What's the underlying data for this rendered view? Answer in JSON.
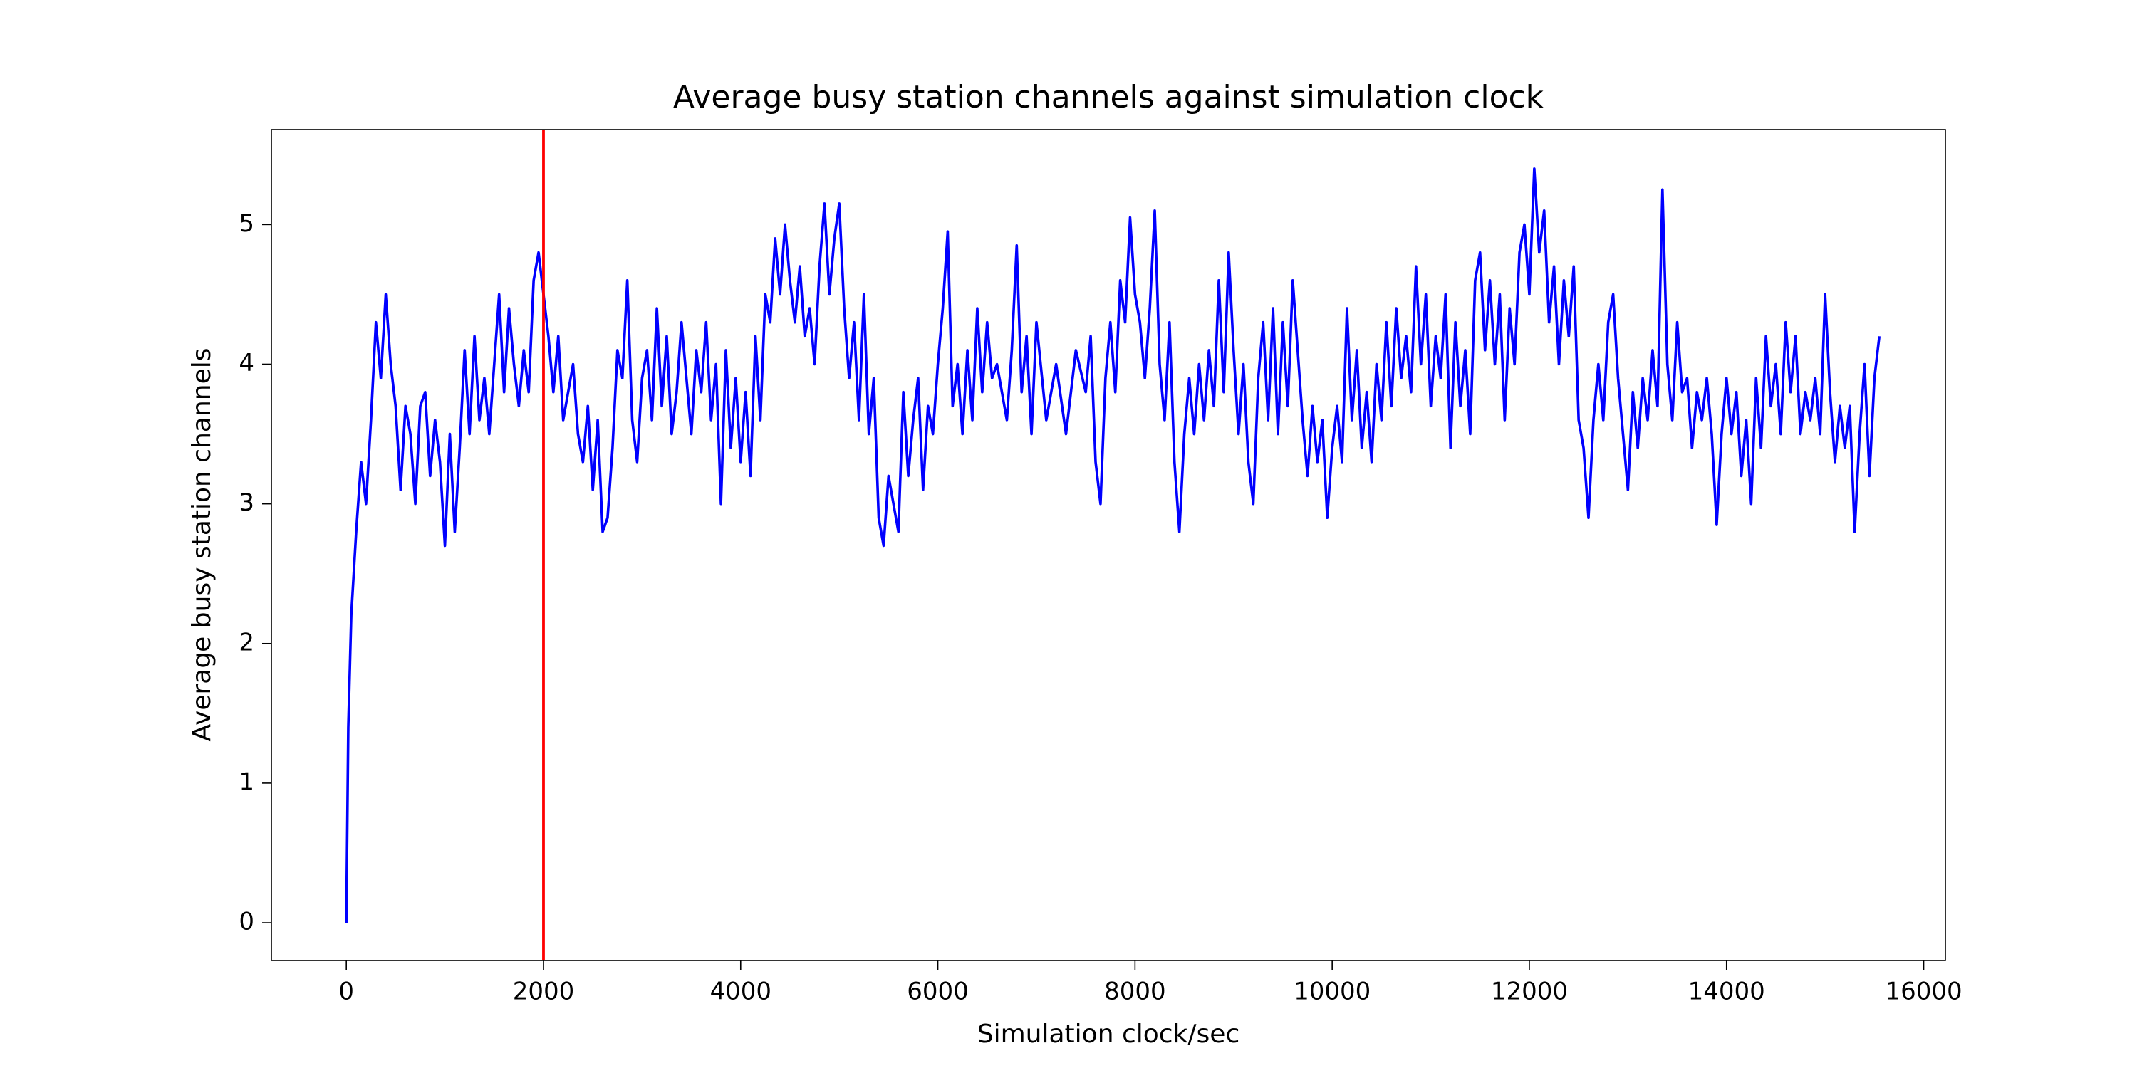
{
  "chart_data": {
    "type": "line",
    "title": "Average busy station channels against simulation clock",
    "x_label": "Simulation clock/sec",
    "y_label": "Average busy station channels",
    "xlim": [
      -760,
      16220
    ],
    "ylim": [
      -0.27,
      5.68
    ],
    "xticks": [
      0,
      2000,
      4000,
      6000,
      8000,
      10000,
      12000,
      14000,
      16000
    ],
    "yticks": [
      0,
      1,
      2,
      3,
      4,
      5
    ],
    "grid": false,
    "vline": {
      "x": 2000,
      "color": "#ff0000"
    },
    "x": [
      0,
      20,
      50,
      100,
      150,
      200,
      250,
      300,
      350,
      400,
      450,
      500,
      550,
      600,
      650,
      700,
      750,
      800,
      850,
      900,
      950,
      1000,
      1050,
      1100,
      1150,
      1200,
      1250,
      1300,
      1350,
      1400,
      1450,
      1500,
      1550,
      1600,
      1650,
      1700,
      1750,
      1800,
      1850,
      1900,
      1950,
      2000,
      2050,
      2100,
      2150,
      2200,
      2300,
      2350,
      2400,
      2450,
      2500,
      2550,
      2600,
      2650,
      2700,
      2750,
      2800,
      2850,
      2900,
      2950,
      3000,
      3050,
      3100,
      3150,
      3200,
      3250,
      3300,
      3350,
      3400,
      3500,
      3550,
      3600,
      3650,
      3700,
      3750,
      3800,
      3850,
      3900,
      3950,
      4000,
      4050,
      4100,
      4150,
      4200,
      4250,
      4300,
      4350,
      4400,
      4450,
      4500,
      4550,
      4600,
      4650,
      4700,
      4750,
      4800,
      4850,
      4900,
      4950,
      5000,
      5050,
      5100,
      5150,
      5200,
      5250,
      5300,
      5350,
      5400,
      5450,
      5500,
      5550,
      5600,
      5650,
      5700,
      5750,
      5800,
      5850,
      5900,
      5950,
      6000,
      6050,
      6100,
      6150,
      6200,
      6250,
      6300,
      6350,
      6400,
      6450,
      6500,
      6550,
      6600,
      6700,
      6750,
      6800,
      6850,
      6900,
      6950,
      7000,
      7100,
      7200,
      7300,
      7400,
      7500,
      7550,
      7600,
      7650,
      7700,
      7750,
      7800,
      7850,
      7900,
      7950,
      8000,
      8050,
      8100,
      8150,
      8200,
      8250,
      8300,
      8350,
      8400,
      8450,
      8500,
      8550,
      8600,
      8650,
      8700,
      8750,
      8800,
      8850,
      8900,
      8950,
      9000,
      9050,
      9100,
      9150,
      9200,
      9250,
      9300,
      9350,
      9400,
      9450,
      9500,
      9550,
      9600,
      9650,
      9700,
      9750,
      9800,
      9850,
      9900,
      9950,
      10000,
      10050,
      10100,
      10150,
      10200,
      10250,
      10300,
      10350,
      10400,
      10450,
      10500,
      10550,
      10600,
      10650,
      10700,
      10750,
      10800,
      10850,
      10900,
      10950,
      11000,
      11050,
      11100,
      11150,
      11200,
      11250,
      11300,
      11350,
      11400,
      11450,
      11500,
      11550,
      11600,
      11650,
      11700,
      11750,
      11800,
      11850,
      11900,
      11950,
      12000,
      12050,
      12100,
      12150,
      12200,
      12250,
      12300,
      12350,
      12400,
      12450,
      12500,
      12550,
      12600,
      12650,
      12700,
      12750,
      12800,
      12850,
      12900,
      12950,
      13000,
      13050,
      13100,
      13150,
      13200,
      13250,
      13300,
      13350,
      13400,
      13450,
      13500,
      13550,
      13600,
      13650,
      13700,
      13750,
      13800,
      13850,
      13900,
      13950,
      14000,
      14050,
      14100,
      14150,
      14200,
      14250,
      14300,
      14350,
      14400,
      14450,
      14500,
      14550,
      14600,
      14650,
      14700,
      14750,
      14800,
      14850,
      14900,
      14950,
      15000,
      15050,
      15100,
      15150,
      15200,
      15250,
      15300,
      15350,
      15400,
      15450,
      15500,
      15550
    ],
    "series": [
      {
        "color": "#0000ff",
        "values": [
          0,
          1.4,
          2.2,
          2.8,
          3.3,
          3.0,
          3.6,
          4.3,
          3.9,
          4.5,
          4.0,
          3.7,
          3.1,
          3.7,
          3.5,
          3.0,
          3.7,
          3.8,
          3.2,
          3.6,
          3.3,
          2.7,
          3.5,
          2.8,
          3.4,
          4.1,
          3.5,
          4.2,
          3.6,
          3.9,
          3.5,
          4.0,
          4.5,
          3.8,
          4.4,
          4.0,
          3.7,
          4.1,
          3.8,
          4.6,
          4.8,
          4.5,
          4.2,
          3.8,
          4.2,
          3.6,
          4.0,
          3.5,
          3.3,
          3.7,
          3.1,
          3.6,
          2.8,
          2.9,
          3.4,
          4.1,
          3.9,
          4.6,
          3.6,
          3.3,
          3.9,
          4.1,
          3.6,
          4.4,
          3.7,
          4.2,
          3.5,
          3.8,
          4.3,
          3.5,
          4.1,
          3.8,
          4.3,
          3.6,
          4.0,
          3.0,
          4.1,
          3.4,
          3.9,
          3.3,
          3.8,
          3.2,
          4.2,
          3.6,
          4.5,
          4.3,
          4.9,
          4.5,
          5.0,
          4.6,
          4.3,
          4.7,
          4.2,
          4.4,
          4.0,
          4.7,
          5.15,
          4.5,
          4.9,
          5.15,
          4.4,
          3.9,
          4.3,
          3.6,
          4.5,
          3.5,
          3.9,
          2.9,
          2.7,
          3.2,
          3.0,
          2.8,
          3.8,
          3.2,
          3.6,
          3.9,
          3.1,
          3.7,
          3.5,
          4.0,
          4.4,
          4.95,
          3.7,
          4.0,
          3.5,
          4.1,
          3.6,
          4.4,
          3.8,
          4.3,
          3.9,
          4.0,
          3.6,
          4.1,
          4.85,
          3.8,
          4.2,
          3.5,
          4.3,
          3.6,
          4.0,
          3.5,
          4.1,
          3.8,
          4.2,
          3.3,
          3.0,
          3.9,
          4.3,
          3.8,
          4.6,
          4.3,
          5.05,
          4.5,
          4.3,
          3.9,
          4.4,
          5.1,
          4.0,
          3.6,
          4.3,
          3.3,
          2.8,
          3.5,
          3.9,
          3.5,
          4.0,
          3.6,
          4.1,
          3.7,
          4.6,
          3.8,
          4.8,
          4.1,
          3.5,
          4.0,
          3.3,
          3.0,
          3.9,
          4.3,
          3.6,
          4.4,
          3.5,
          4.3,
          3.7,
          4.6,
          4.1,
          3.6,
          3.2,
          3.7,
          3.3,
          3.6,
          2.9,
          3.4,
          3.7,
          3.3,
          4.4,
          3.6,
          4.1,
          3.4,
          3.8,
          3.3,
          4.0,
          3.6,
          4.3,
          3.7,
          4.4,
          3.9,
          4.2,
          3.8,
          4.7,
          4.0,
          4.5,
          3.7,
          4.2,
          3.9,
          4.5,
          3.4,
          4.3,
          3.7,
          4.1,
          3.5,
          4.6,
          4.8,
          4.1,
          4.6,
          4.0,
          4.5,
          3.6,
          4.4,
          4.0,
          4.8,
          5.0,
          4.5,
          5.4,
          4.8,
          5.1,
          4.3,
          4.7,
          4.0,
          4.6,
          4.2,
          4.7,
          3.6,
          3.4,
          2.9,
          3.6,
          4.0,
          3.6,
          4.3,
          4.5,
          3.9,
          3.5,
          3.1,
          3.8,
          3.4,
          3.9,
          3.6,
          4.1,
          3.7,
          5.25,
          4.0,
          3.6,
          4.3,
          3.8,
          3.9,
          3.4,
          3.8,
          3.6,
          3.9,
          3.5,
          2.85,
          3.5,
          3.9,
          3.5,
          3.8,
          3.2,
          3.6,
          3.0,
          3.9,
          3.4,
          4.2,
          3.7,
          4.0,
          3.5,
          4.3,
          3.8,
          4.2,
          3.5,
          3.8,
          3.6,
          3.9,
          3.5,
          4.5,
          3.8,
          3.3,
          3.7,
          3.4,
          3.7,
          2.8,
          3.5,
          4.0,
          3.2,
          3.9,
          4.2
        ]
      }
    ]
  }
}
